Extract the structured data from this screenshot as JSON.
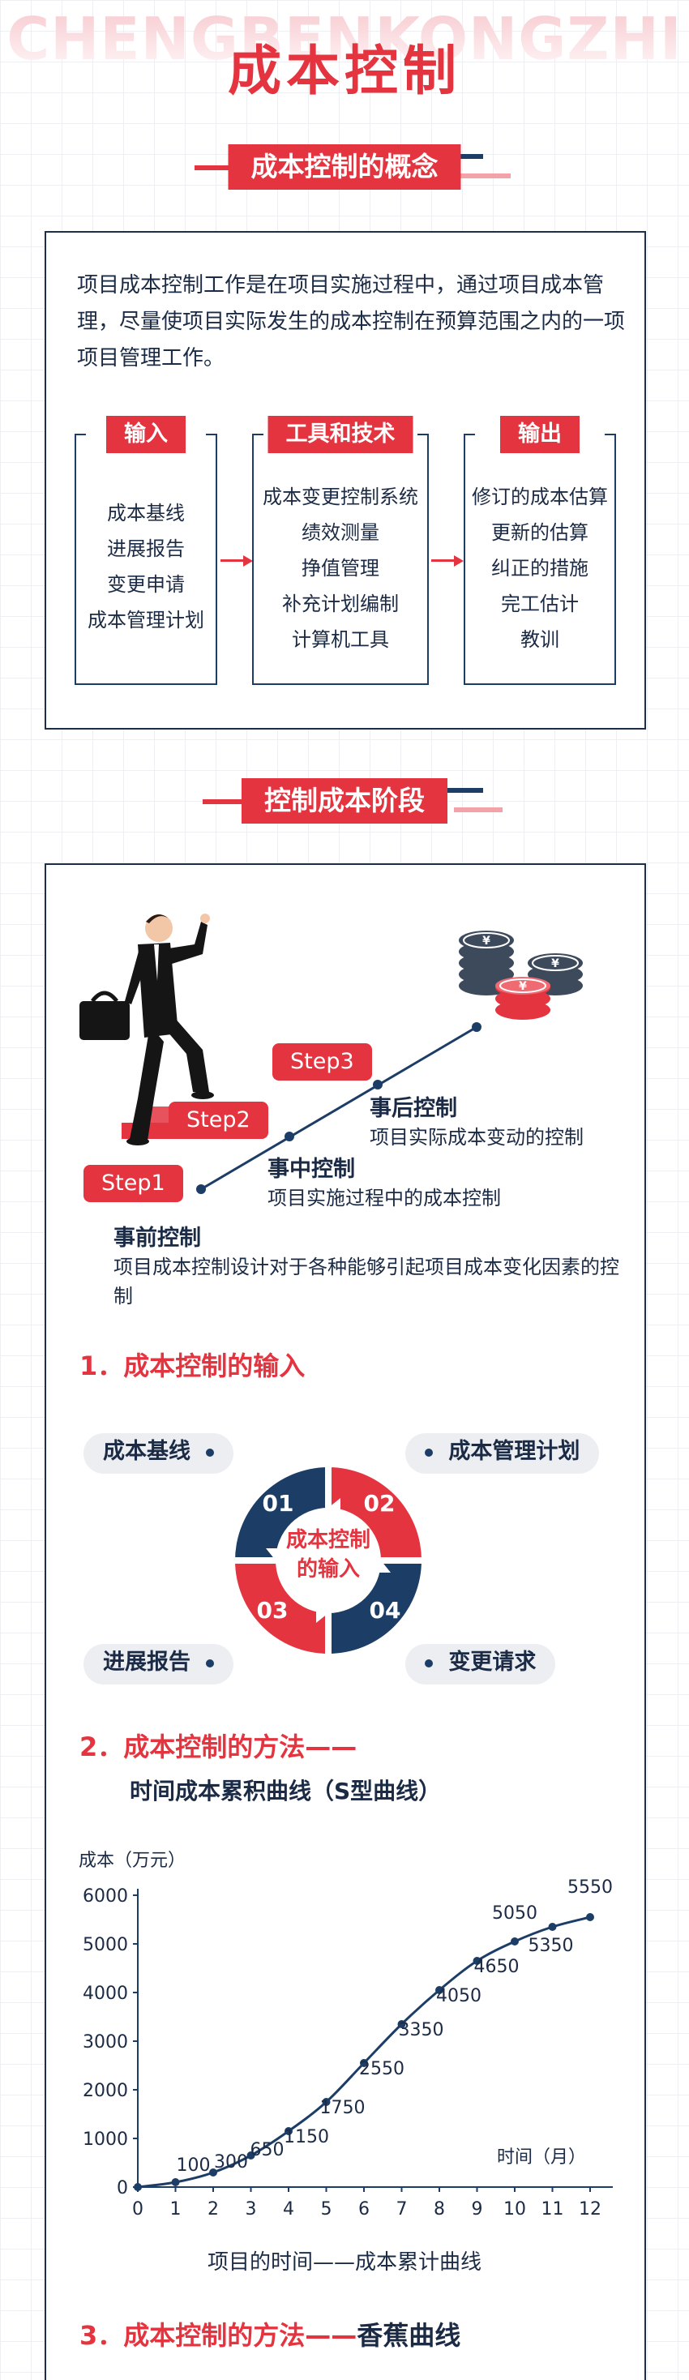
{
  "header": {
    "watermark": "CHENGBENKONGZHI",
    "title": "成本控制"
  },
  "section1": {
    "banner": "成本控制的概念",
    "intro": "项目成本控制工作是在项目实施过程中，通过项目成本管理，尽量使项目实际发生的成本控制在预算范围之内的一项项目管理工作。",
    "columns": [
      {
        "head": "输入",
        "items": [
          "成本基线",
          "进展报告",
          "变更申请",
          "成本管理计划"
        ]
      },
      {
        "head": "工具和技术",
        "items": [
          "成本变更控制系统",
          "绩效测量",
          "挣值管理",
          "补充计划编制",
          "计算机工具"
        ]
      },
      {
        "head": "输出",
        "items": [
          "修订的成本估算",
          "更新的估算",
          "纠正的措施",
          "完工估计",
          "教训"
        ]
      }
    ]
  },
  "section2": {
    "banner": "控制成本阶段",
    "steps": [
      {
        "tag": "Step1",
        "title": "事前控制",
        "desc": "项目成本控制设计对于各种能够引起项目成本变化因素的控制"
      },
      {
        "tag": "Step2",
        "title": "事中控制",
        "desc": "项目实施过程中的成本控制"
      },
      {
        "tag": "Step3",
        "title": "事后控制",
        "desc": "项目实际成本变动的控制"
      }
    ],
    "inputs_heading": "1．成本控制的输入",
    "cycle": {
      "center": [
        "成本控制",
        "的输入"
      ],
      "numbers": [
        "01",
        "02",
        "03",
        "04"
      ],
      "labels": [
        "成本基线",
        "成本管理计划",
        "进展报告",
        "变更请求"
      ]
    },
    "method_heading": "2．成本控制的方法——",
    "chart_subtitle": "时间成本累积曲线（S型曲线）",
    "chart_caption": "项目的时间——成本累计曲线",
    "method3_heading_red": "3．成本控制的方法——",
    "method3_heading_dark": "香蕉曲线"
  },
  "colors": {
    "accent": "#e4343f",
    "navy": "#1c3d66",
    "text": "#1c2b45"
  },
  "icons": [
    "businessman-climbing-stairs-icon",
    "coin-stacks-icon"
  ],
  "chart_data": {
    "type": "line",
    "title": "",
    "ylabel": "成本（万元）",
    "xlabel": "时间（月）",
    "x": [
      0,
      1,
      2,
      3,
      4,
      5,
      6,
      7,
      8,
      9,
      10,
      11,
      12
    ],
    "series": [
      {
        "values": [
          0,
          100,
          300,
          650,
          1150,
          1750,
          2550,
          3350,
          4050,
          4650,
          5050,
          5350,
          5550
        ]
      }
    ],
    "data_labels": [
      "100",
      "300",
      "650",
      "1150",
      "1750",
      "2550",
      "3350",
      "4050",
      "4650",
      "5050",
      "5350",
      "5550"
    ],
    "x_ticks": [
      "0",
      "1",
      "2",
      "3",
      "4",
      "5",
      "6",
      "7",
      "8",
      "9",
      "10",
      "11",
      "12"
    ],
    "y_ticks": [
      "0",
      "1000",
      "2000",
      "3000",
      "4000",
      "5000",
      "6000"
    ],
    "ylim": [
      0,
      6000
    ],
    "xlim": [
      0,
      12
    ],
    "grid": false
  }
}
